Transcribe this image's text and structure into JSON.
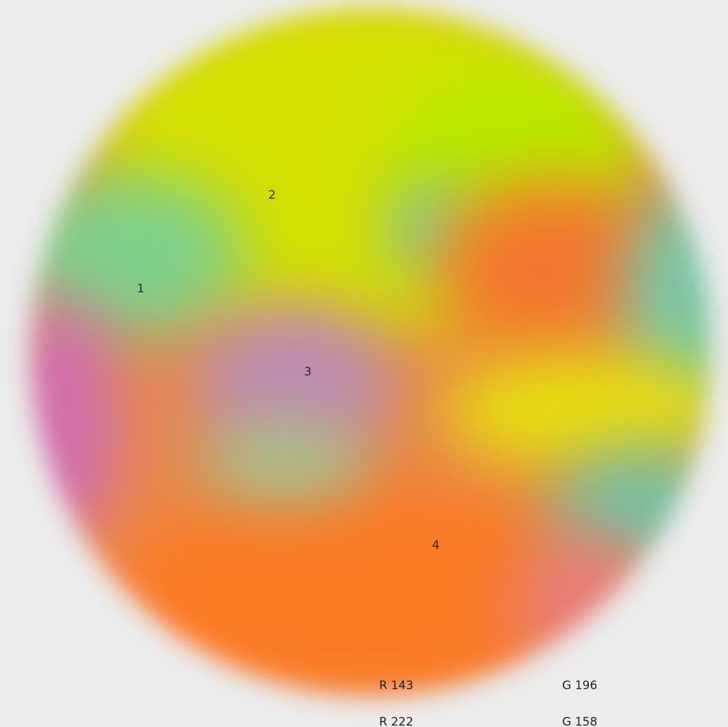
{
  "regions": [
    {
      "label": "1",
      "color": "#7fcf8a"
    },
    {
      "label": "2",
      "color": "#d4df00"
    },
    {
      "label": "3",
      "color": "#be8db0"
    },
    {
      "label": "4",
      "color": "#fb7a26"
    }
  ],
  "readout": {
    "row1": {
      "r": "R 143",
      "g": "G 196"
    },
    "row2": {
      "r": "R 222",
      "g": "G 158"
    }
  }
}
